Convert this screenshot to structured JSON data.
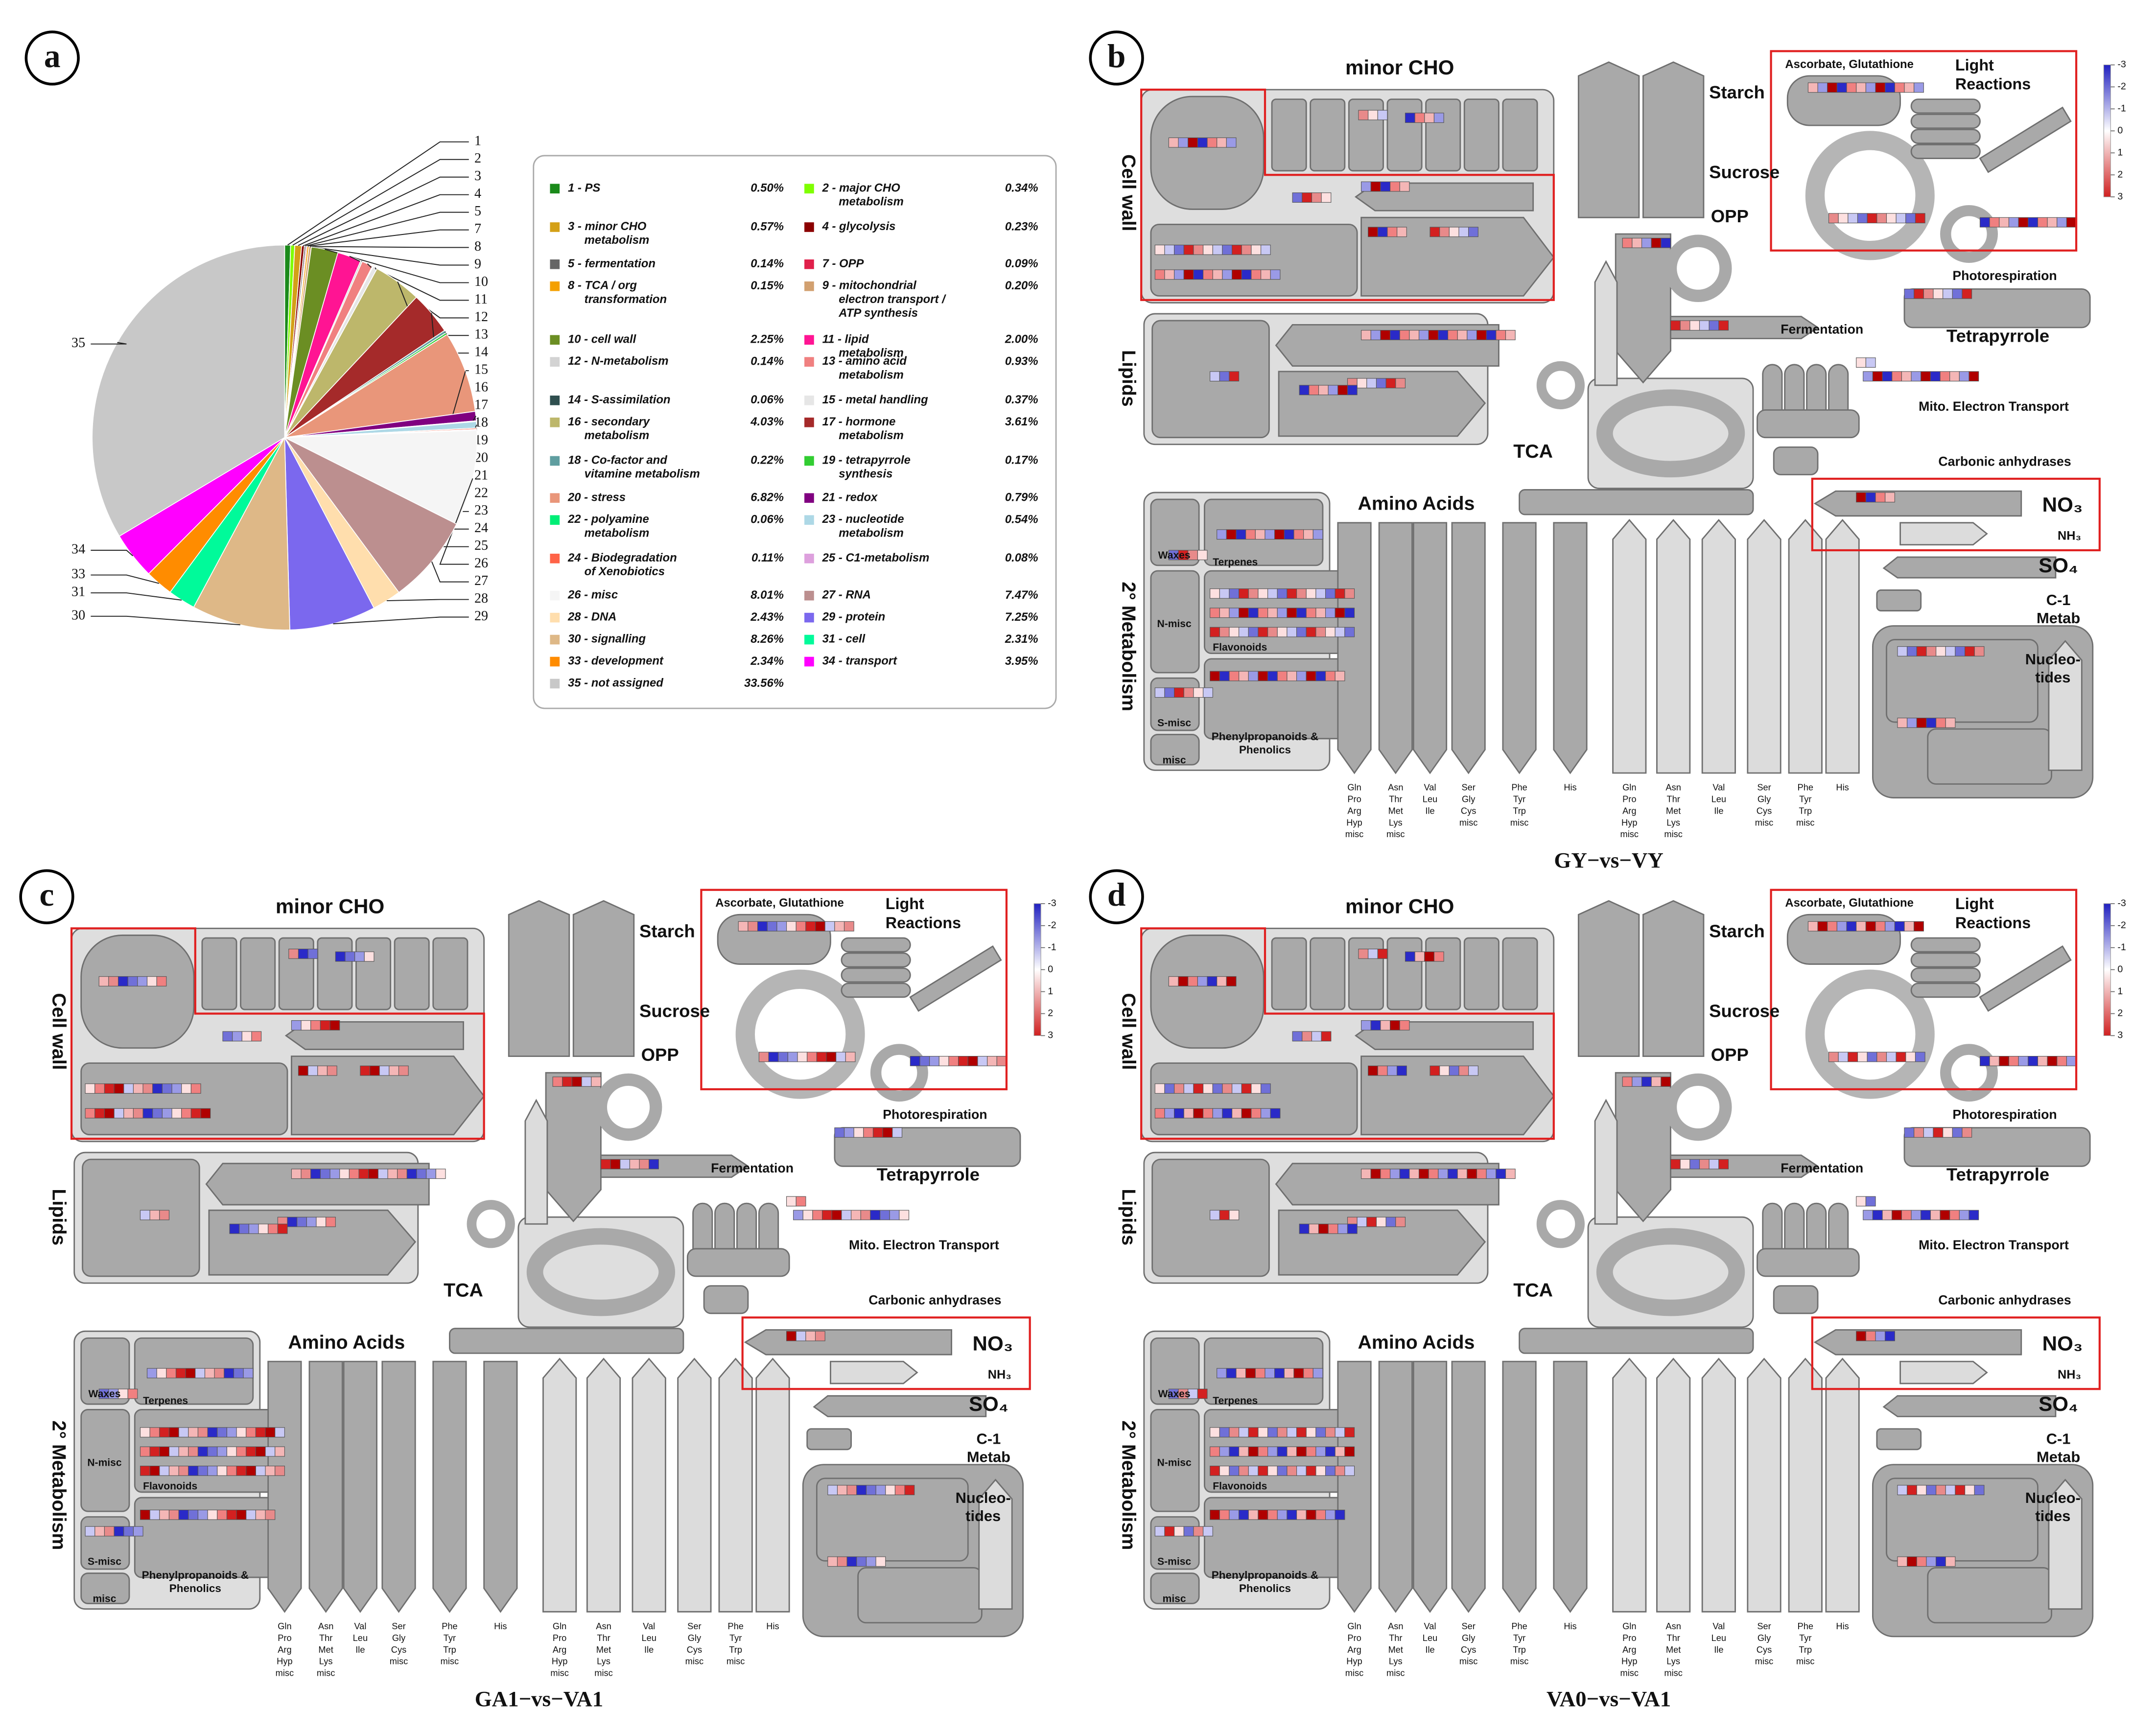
{
  "chart_data": {
    "type": "pie",
    "panel_label": "a",
    "categories": [
      "1 - PS",
      "2 - major CHO metabolism",
      "3 - minor CHO metabolism",
      "4 - glycolysis",
      "5 - fermentation",
      "7 - OPP",
      "8 - TCA / org transformation",
      "9 - mitochondrial electron transport / ATP synthesis",
      "10 - cell wall",
      "11 - lipid metabolism",
      "12 - N-metabolism",
      "13 - amino acid metabolism",
      "14 - S-assimilation",
      "15 - metal handling",
      "16 - secondary metabolism",
      "17 - hormone metabolism",
      "18 - Co-factor and vitamine metabolism",
      "19 - tetrapyrrole synthesis",
      "20 - stress",
      "21 - redox",
      "22 - polyamine metabolism",
      "23 - nucleotide metabolism",
      "24 - Biodegradation of Xenobiotics",
      "25 - C1-metabolism",
      "26 - misc",
      "27 - RNA",
      "28 - DNA",
      "29 - protein",
      "30 - signalling",
      "31 - cell",
      "33 - development",
      "34 - transport",
      "35 - not assigned"
    ],
    "values": [
      0.5,
      0.34,
      0.57,
      0.23,
      0.14,
      0.09,
      0.15,
      0.2,
      2.25,
      2.0,
      0.14,
      0.93,
      0.06,
      0.37,
      4.03,
      3.61,
      0.22,
      0.17,
      6.82,
      0.79,
      0.06,
      0.54,
      0.11,
      0.08,
      8.01,
      7.47,
      2.43,
      7.25,
      8.26,
      2.31,
      2.34,
      3.95,
      33.56
    ],
    "value_labels": [
      "0.50%",
      "0.34%",
      "0.57%",
      "0.23%",
      "0.14%",
      "0.09%",
      "0.15%",
      "0.20%",
      "2.25%",
      "2.00%",
      "0.14%",
      "0.93%",
      "0.06%",
      "0.37%",
      "4.03%",
      "3.61%",
      "0.22%",
      "0.17%",
      "6.82%",
      "0.79%",
      "0.06%",
      "0.54%",
      "0.11%",
      "0.08%",
      "8.01%",
      "7.47%",
      "2.43%",
      "7.25%",
      "8.26%",
      "2.31%",
      "2.34%",
      "3.95%",
      "33.56%"
    ],
    "colors": [
      "#1a8a1a",
      "#7fff00",
      "#d4a017",
      "#8b0000",
      "#666666",
      "#e0204a",
      "#f4a000",
      "#d2a070",
      "#6b8e23",
      "#ff1493",
      "#d3d3d3",
      "#f08080",
      "#2f4f4f",
      "#e6e6e6",
      "#bdb76b",
      "#a52a2a",
      "#5f9ea0",
      "#32cd32",
      "#e9967a",
      "#800080",
      "#00ee76",
      "#add8e6",
      "#ff6347",
      "#dda0dd",
      "#f5f5f5",
      "#bc8f8f",
      "#ffdead",
      "#7b68ee",
      "#deb887",
      "#00fa9a",
      "#ff8c00",
      "#ff00ff",
      "#c8c8c8"
    ],
    "callout_labels": [
      1,
      2,
      3,
      4,
      5,
      7,
      8,
      9,
      10,
      11,
      12,
      13,
      14,
      15,
      16,
      17,
      18,
      19,
      20,
      21,
      22,
      23,
      24,
      25,
      26,
      27,
      28,
      29,
      30,
      31,
      33,
      34,
      35
    ]
  },
  "pathway_map": {
    "minor_cho": "minor CHO",
    "starch": "Starch",
    "sucrose": "Sucrose",
    "cell_wall": "Cell wall",
    "lipids": "Lipids",
    "opp": "OPP",
    "fermentation": "Fermentation",
    "tca": "TCA",
    "amino_acids": "Amino Acids",
    "secondary": "2° Metabolism",
    "waxes": "Waxes",
    "terpenes": "Terpenes",
    "flavonoids": "Flavonoids",
    "n_misc": "N-misc",
    "s_misc": "S-misc",
    "misc": "misc",
    "phenylpropanoids": [
      "Phenylpropanoids &",
      "Phenolics"
    ],
    "ascorbate": "Ascorbate, Glutathione",
    "light_reactions": [
      "Light",
      "Reactions"
    ],
    "photorespiration": "Photorespiration",
    "tetrapyrrole": "Tetrapyrrole",
    "mito": "Mito. Electron Transport",
    "carbonic": "Carbonic anhydrases",
    "no3": "NO₃",
    "nh3": "NH₃",
    "so4": "SO₄",
    "c1": [
      "C-1",
      "Metab"
    ],
    "nucleotides": [
      "Nucleo-",
      "tides"
    ],
    "amino_groups": [
      [
        "Gln",
        "Pro",
        "Arg",
        "Hyp",
        "misc"
      ],
      [
        "Asn",
        "Thr",
        "Met",
        "Lys",
        "misc"
      ],
      [
        "Val",
        "Leu",
        "Ile"
      ],
      [
        "Ser",
        "Gly",
        "Cys",
        "misc"
      ],
      [
        "Phe",
        "Tyr",
        "Trp",
        "misc"
      ],
      [
        "His"
      ]
    ],
    "scale_ticks": [
      -3,
      -2,
      -1,
      0,
      1,
      2,
      3
    ]
  },
  "panels": [
    {
      "label": "b",
      "caption": "GY−vs−VY"
    },
    {
      "label": "c",
      "caption": "GA1−vs−VA1"
    },
    {
      "label": "d",
      "caption": "VA0−vs−VA1"
    }
  ]
}
